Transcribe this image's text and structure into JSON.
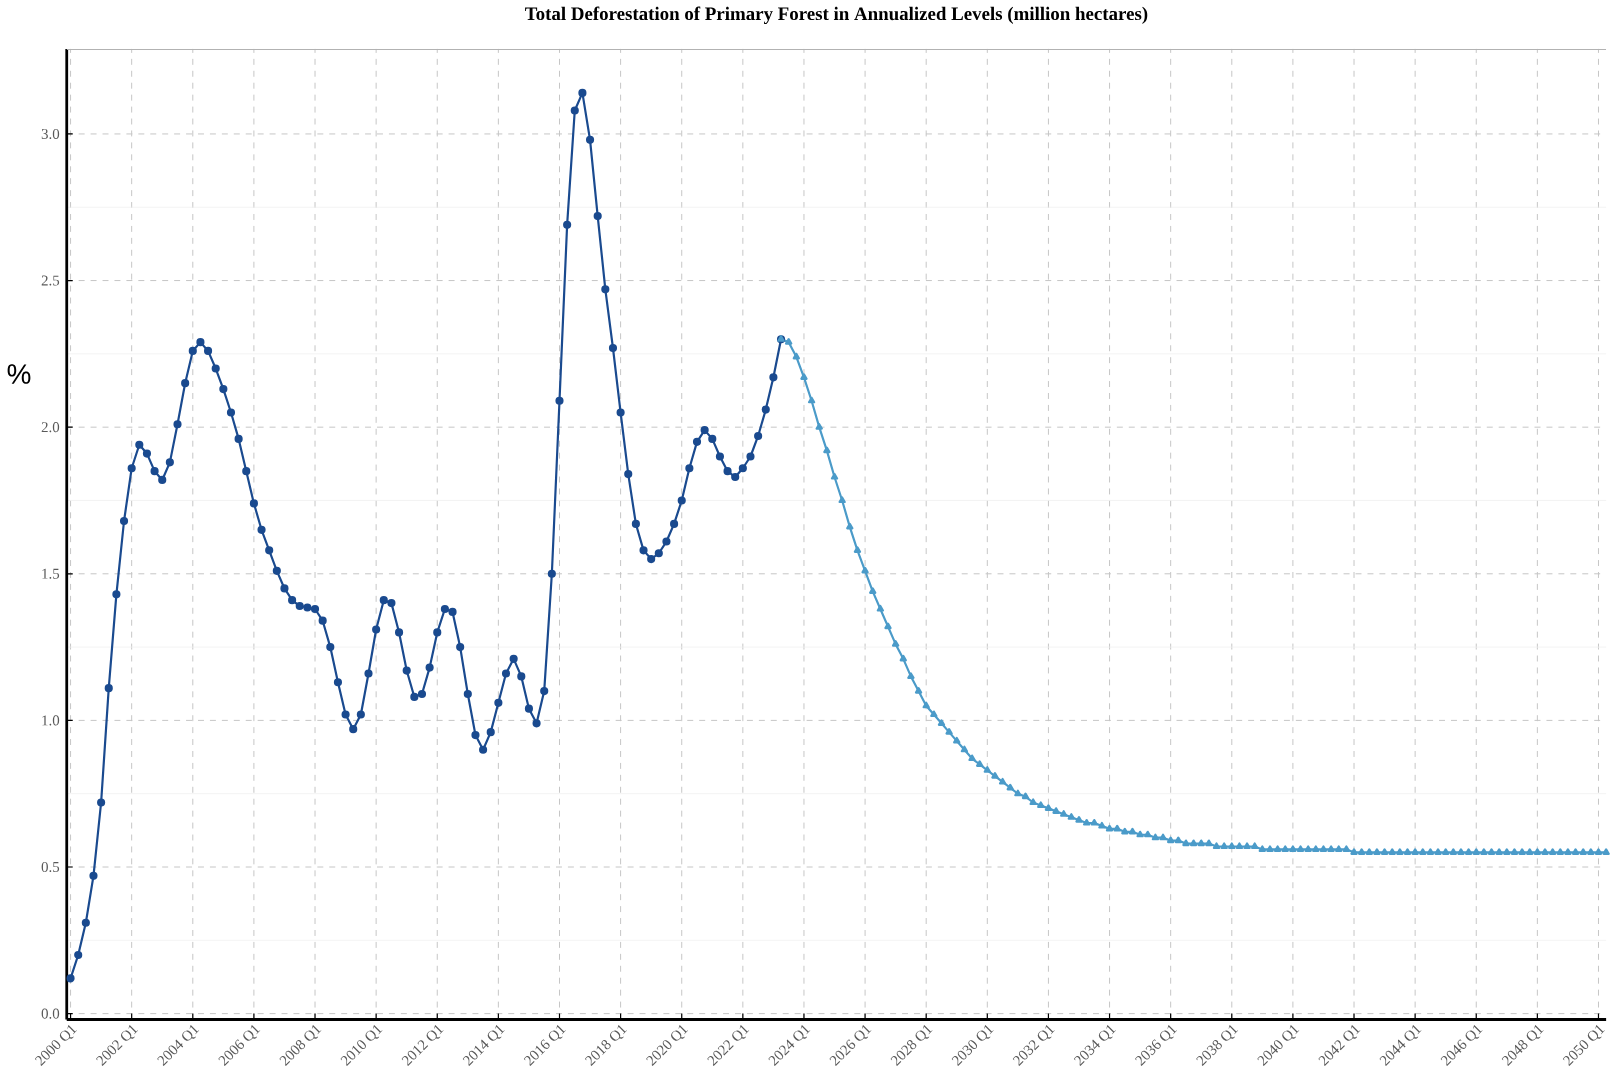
{
  "chart_data": {
    "type": "line",
    "title": "Total Deforestation of  Primary Forest in Annualized Levels (million hectares)",
    "ylabel": "%",
    "categories": [
      "2000 Q1",
      null,
      null,
      null,
      null,
      null,
      null,
      null,
      "2002 Q1",
      null,
      null,
      null,
      null,
      null,
      null,
      null,
      "2004 Q1",
      null,
      null,
      null,
      null,
      null,
      null,
      null,
      "2006 Q1",
      null,
      null,
      null,
      null,
      null,
      null,
      null,
      "2008 Q1",
      null,
      null,
      null,
      null,
      null,
      null,
      null,
      "2010 Q1",
      null,
      null,
      null,
      null,
      null,
      null,
      null,
      "2012 Q1",
      null,
      null,
      null,
      null,
      null,
      null,
      null,
      "2014 Q1",
      null,
      null,
      null,
      null,
      null,
      null,
      null,
      "2016 Q1",
      null,
      null,
      null,
      null,
      null,
      null,
      null,
      "2018 Q1",
      null,
      null,
      null,
      null,
      null,
      null,
      null,
      "2020 Q1",
      null,
      null,
      null,
      null,
      null,
      null,
      null,
      "2022 Q1",
      null,
      null,
      null,
      null,
      null,
      null,
      null,
      "2024 Q1",
      null,
      null,
      null,
      null,
      null,
      null,
      null,
      "2026 Q1",
      null,
      null,
      null,
      null,
      null,
      null,
      null,
      "2028 Q1",
      null,
      null,
      null,
      null,
      null,
      null,
      null,
      "2030 Q1",
      null,
      null,
      null,
      null,
      null,
      null,
      null,
      "2032 Q1",
      null,
      null,
      null,
      null,
      null,
      null,
      null,
      "2034 Q1",
      null,
      null,
      null,
      null,
      null,
      null,
      null,
      "2036 Q1",
      null,
      null,
      null,
      null,
      null,
      null,
      null,
      "2038 Q1",
      null,
      null,
      null,
      null,
      null,
      null,
      null,
      "2040 Q1",
      null,
      null,
      null,
      null,
      null,
      null,
      null,
      "2042 Q1",
      null,
      null,
      null,
      null,
      null,
      null,
      null,
      "2044 Q1",
      null,
      null,
      null,
      null,
      null,
      null,
      null,
      "2046 Q1",
      null,
      null,
      null,
      null,
      null,
      null,
      null,
      "2048 Q1",
      null,
      null,
      null,
      null,
      null,
      null,
      null,
      "2050 Q1",
      null
    ],
    "ylim": [
      -0.02,
      3.29
    ],
    "yticks": [
      {
        "value": 0,
        "label": "0.0"
      },
      {
        "value": 0.5,
        "label": "0.5"
      },
      {
        "value": 1,
        "label": "1.0"
      },
      {
        "value": 1.5,
        "label": "1.5"
      },
      {
        "value": 2,
        "label": "2.0"
      },
      {
        "value": 2.5,
        "label": "2.5"
      },
      {
        "value": 3,
        "label": "3.0"
      }
    ],
    "grid": true,
    "line_style": "solid",
    "series": [
      {
        "color": "#1a4a8f",
        "marker": "circle",
        "values": [
          0.12,
          0.2,
          0.31,
          0.47,
          0.72,
          1.11,
          1.43,
          1.68,
          1.86,
          1.94,
          1.91,
          1.85,
          1.82,
          1.88,
          2.01,
          2.15,
          2.26,
          2.29,
          2.26,
          2.2,
          2.13,
          2.05,
          1.96,
          1.85,
          1.74,
          1.65,
          1.58,
          1.51,
          1.45,
          1.41,
          1.39,
          1.385,
          1.38,
          1.34,
          1.25,
          1.13,
          1.02,
          0.97,
          1.02,
          1.16,
          1.31,
          1.41,
          1.4,
          1.3,
          1.17,
          1.08,
          1.09,
          1.18,
          1.3,
          1.38,
          1.37,
          1.25,
          1.09,
          0.95,
          0.9,
          0.96,
          1.06,
          1.16,
          1.21,
          1.15,
          1.04,
          0.99,
          1.1,
          1.5,
          2.09,
          2.69,
          3.08,
          3.14,
          2.98,
          2.72,
          2.47,
          2.27,
          2.05,
          1.84,
          1.67,
          1.58,
          1.55,
          1.57,
          1.61,
          1.67,
          1.75,
          1.86,
          1.95,
          1.99,
          1.96,
          1.9,
          1.85,
          1.83,
          1.86,
          1.9,
          1.97,
          2.06,
          2.17,
          2.3,
          null,
          null,
          null,
          null,
          null,
          null,
          null,
          null,
          null,
          null,
          null,
          null,
          null,
          null,
          null,
          null,
          null,
          null,
          null,
          null,
          null,
          null,
          null,
          null,
          null,
          null,
          null,
          null,
          null,
          null,
          null,
          null,
          null,
          null,
          null,
          null,
          null,
          null,
          null,
          null,
          null,
          null,
          null,
          null,
          null,
          null,
          null,
          null,
          null,
          null,
          null,
          null,
          null,
          null,
          null,
          null,
          null,
          null,
          null,
          null,
          null,
          null,
          null,
          null,
          null,
          null,
          null,
          null,
          null,
          null,
          null,
          null,
          null,
          null,
          null,
          null,
          null,
          null,
          null,
          null,
          null,
          null,
          null,
          null,
          null,
          null,
          null,
          null,
          null,
          null,
          null,
          null,
          null,
          null,
          null,
          null,
          null,
          null,
          null,
          null,
          null,
          null,
          null,
          null,
          null,
          null,
          null,
          null
        ]
      },
      {
        "color": "#4b9bc9",
        "marker": "triangle",
        "values": [
          null,
          null,
          null,
          null,
          null,
          null,
          null,
          null,
          null,
          null,
          null,
          null,
          null,
          null,
          null,
          null,
          null,
          null,
          null,
          null,
          null,
          null,
          null,
          null,
          null,
          null,
          null,
          null,
          null,
          null,
          null,
          null,
          null,
          null,
          null,
          null,
          null,
          null,
          null,
          null,
          null,
          null,
          null,
          null,
          null,
          null,
          null,
          null,
          null,
          null,
          null,
          null,
          null,
          null,
          null,
          null,
          null,
          null,
          null,
          null,
          null,
          null,
          null,
          null,
          null,
          null,
          null,
          null,
          null,
          null,
          null,
          null,
          null,
          null,
          null,
          null,
          null,
          null,
          null,
          null,
          null,
          null,
          null,
          null,
          null,
          null,
          null,
          null,
          null,
          null,
          null,
          null,
          null,
          2.3,
          2.29,
          2.24,
          2.17,
          2.09,
          2.0,
          1.92,
          1.83,
          1.75,
          1.66,
          1.58,
          1.51,
          1.44,
          1.38,
          1.32,
          1.26,
          1.21,
          1.15,
          1.1,
          1.05,
          1.02,
          0.99,
          0.96,
          0.93,
          0.9,
          0.87,
          0.85,
          0.83,
          0.81,
          0.79,
          0.77,
          0.75,
          0.74,
          0.72,
          0.71,
          0.7,
          0.69,
          0.68,
          0.67,
          0.66,
          0.65,
          0.65,
          0.64,
          0.63,
          0.63,
          0.62,
          0.62,
          0.61,
          0.61,
          0.6,
          0.6,
          0.59,
          0.59,
          0.58,
          0.58,
          0.58,
          0.58,
          0.57,
          0.57,
          0.57,
          0.57,
          0.57,
          0.57,
          0.56,
          0.56,
          0.56,
          0.56,
          0.56,
          0.56,
          0.56,
          0.56,
          0.56,
          0.56,
          0.56,
          0.56,
          0.55,
          0.55,
          0.55,
          0.55,
          0.55,
          0.55,
          0.55,
          0.55,
          0.55,
          0.55,
          0.55,
          0.55,
          0.55,
          0.55,
          0.55,
          0.55,
          0.55,
          0.55,
          0.55,
          0.55,
          0.55,
          0.55,
          0.55,
          0.55,
          0.55,
          0.55,
          0.55,
          0.55,
          0.55,
          0.55,
          0.55,
          0.55,
          0.55,
          0.55
        ]
      }
    ]
  }
}
